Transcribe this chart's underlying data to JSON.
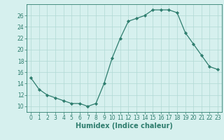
{
  "x": [
    0,
    1,
    2,
    3,
    4,
    5,
    6,
    7,
    8,
    9,
    10,
    11,
    12,
    13,
    14,
    15,
    16,
    17,
    18,
    19,
    20,
    21,
    22,
    23
  ],
  "y": [
    15,
    13,
    12,
    11.5,
    11,
    10.5,
    10.5,
    10,
    10.5,
    14,
    18.5,
    22,
    25,
    25.5,
    26,
    27,
    27,
    27,
    26.5,
    23,
    21,
    19,
    17,
    16.5
  ],
  "xlabel": "Humidex (Indice chaleur)",
  "xlim": [
    -0.5,
    23.5
  ],
  "ylim": [
    9,
    28
  ],
  "yticks": [
    10,
    12,
    14,
    16,
    18,
    20,
    22,
    24,
    26
  ],
  "xticks": [
    0,
    1,
    2,
    3,
    4,
    5,
    6,
    7,
    8,
    9,
    10,
    11,
    12,
    13,
    14,
    15,
    16,
    17,
    18,
    19,
    20,
    21,
    22,
    23
  ],
  "line_color": "#2e7d6e",
  "marker": "D",
  "marker_size": 2.2,
  "bg_color": "#d6f0ee",
  "grid_color": "#b0d8d4",
  "tick_label_fontsize": 5.5,
  "xlabel_fontsize": 7.0
}
